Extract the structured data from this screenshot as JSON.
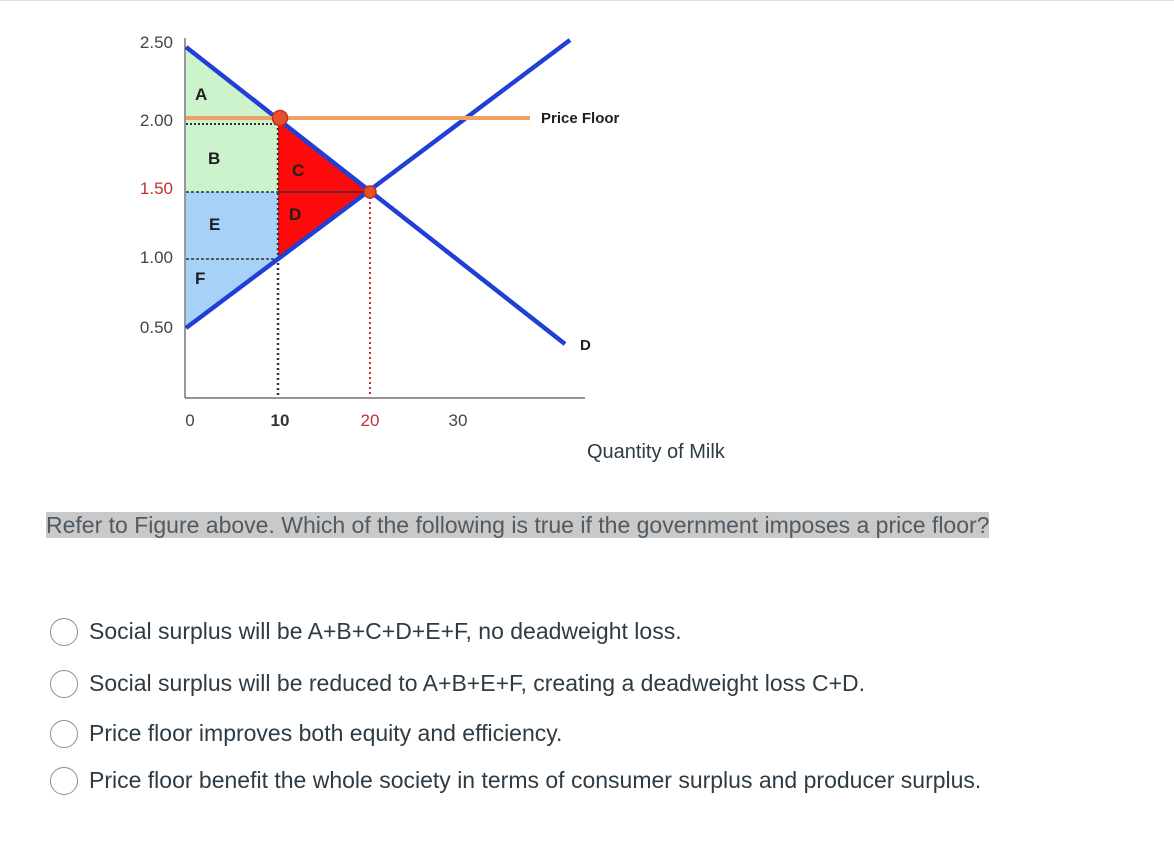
{
  "figure": {
    "y_tick_labels": [
      "2.50",
      "2.00",
      "1.50",
      "1.00",
      "0.50"
    ],
    "x_tick_labels": [
      "0",
      "10",
      "20",
      "30"
    ],
    "x_axis_label": "Quantity of Milk",
    "price_floor_label": "Price Floor",
    "demand_label": "D",
    "region_labels": {
      "A": "A",
      "B": "B",
      "C": "C",
      "D": "D",
      "E": "E",
      "F": "F"
    },
    "price_floor_value": 2.0,
    "equilibrium": {
      "quantity": 20,
      "price": 1.5
    },
    "floor_quantity": 10,
    "colors": {
      "curves": "#1f3fd6",
      "price_floor": "#f0a060",
      "consumer_surplus": "#cdf3cd",
      "producer_surplus": "#a8d1f7",
      "deadweight_loss": "#ff0a0a",
      "points": "#e8502a",
      "highlight_tick": "#c03030"
    }
  },
  "question": {
    "text": "Refer to Figure above. Which of the following is true if the government imposes a price floor?"
  },
  "answers": [
    {
      "text": "Social surplus will be A+B+C+D+E+F, no deadweight loss.",
      "selected": false
    },
    {
      "text": "Social surplus will be reduced to A+B+E+F, creating a deadweight loss C+D.",
      "selected": false
    },
    {
      "text": "Price floor improves both equity and efficiency.",
      "selected": false
    },
    {
      "text": "Price floor benefit the whole society in terms of consumer surplus and producer surplus.",
      "selected": false
    }
  ]
}
